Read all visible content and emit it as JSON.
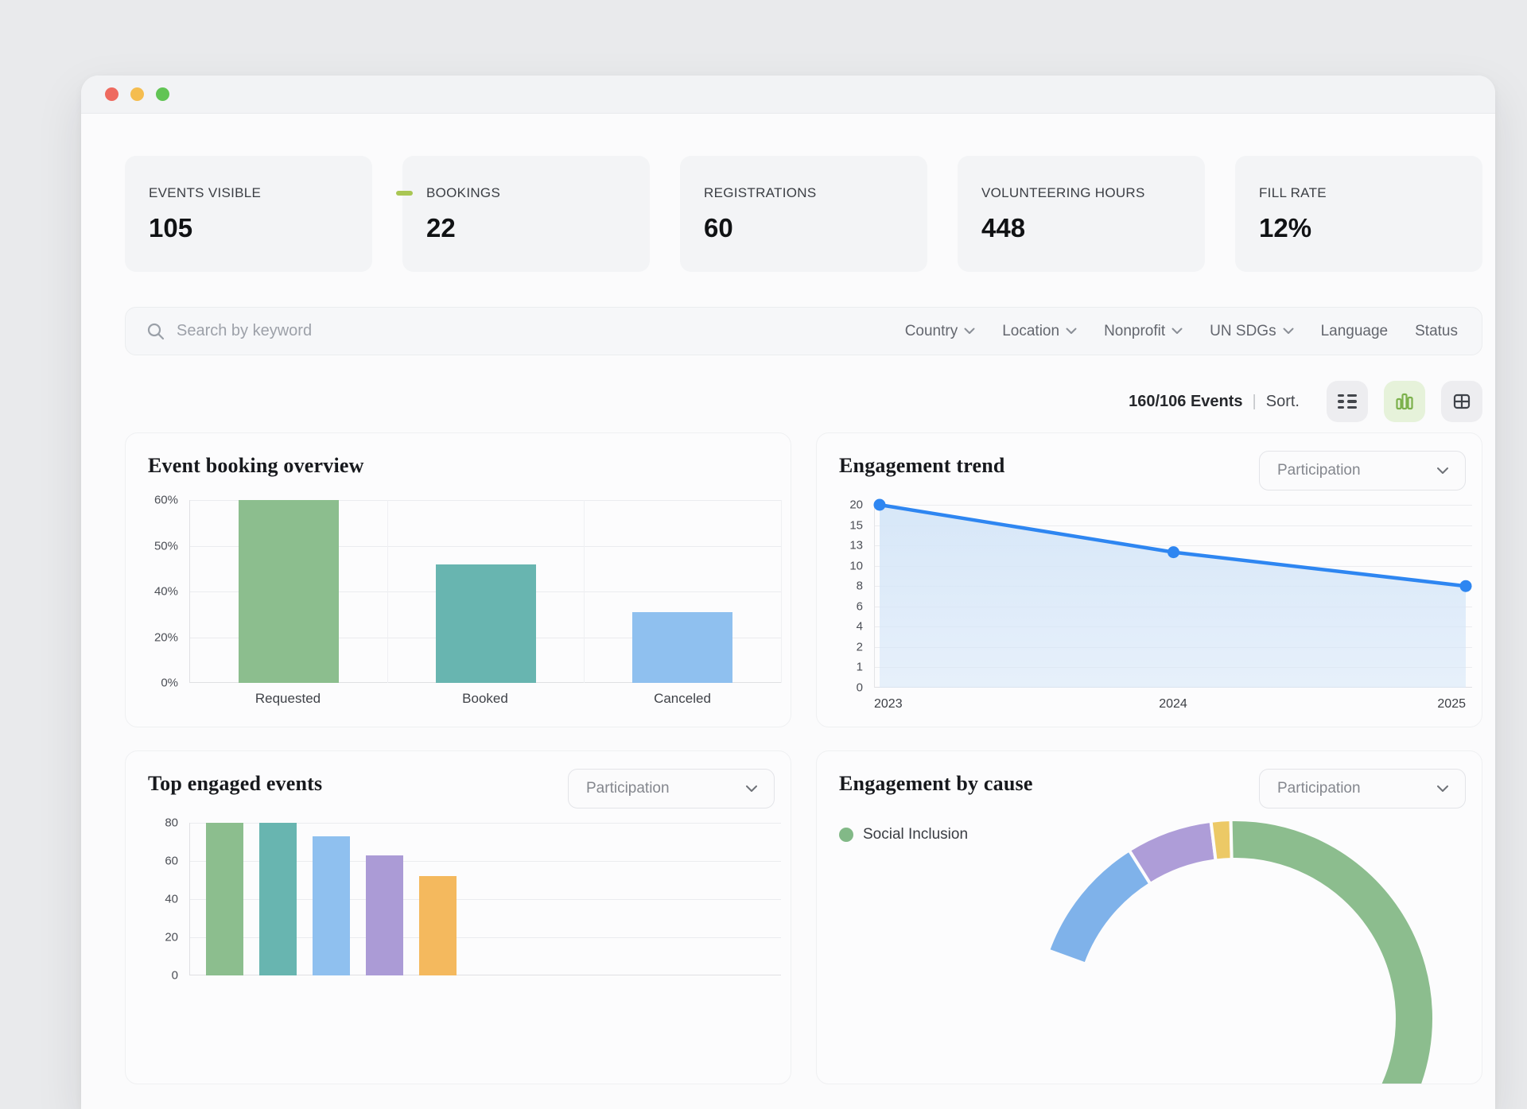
{
  "window": {
    "traffic_lights": {
      "close": "#ee6a5f",
      "minimize": "#f5bd4f",
      "zoom": "#61c454"
    }
  },
  "stats_cards": [
    {
      "label": "EVENTS VISIBLE",
      "value": "105"
    },
    {
      "label": "BOOKINGS",
      "value": "22"
    },
    {
      "label": "REGISTRATIONS",
      "value": "60"
    },
    {
      "label": "VOLUNTEERING HOURS",
      "value": "448"
    },
    {
      "label": "FILL RATE",
      "value": "12%"
    }
  ],
  "green_dash_color": "#a9c654",
  "search": {
    "placeholder": "Search by keyword",
    "filters": [
      {
        "label": "Country",
        "has_chevron": true
      },
      {
        "label": "Location",
        "has_chevron": true
      },
      {
        "label": "Nonprofit",
        "has_chevron": true
      },
      {
        "label": "UN SDGs",
        "has_chevron": true
      },
      {
        "label": "Language",
        "has_chevron": false
      },
      {
        "label": "Status",
        "has_chevron": false
      }
    ]
  },
  "toolbar": {
    "events_count": "160/106 Events",
    "separator": "|",
    "sort_label": "Sort.",
    "active_accent": "#7cb14c",
    "view_buttons": [
      {
        "name": "list-view",
        "active": false
      },
      {
        "name": "chart-view",
        "active": true
      },
      {
        "name": "grid-view",
        "active": false
      }
    ]
  },
  "chart_data": [
    {
      "id": "event-booking-overview",
      "type": "bar",
      "title": "Event booking overview",
      "categories": [
        "Requested",
        "Booked",
        "Canceled"
      ],
      "values": [
        60,
        46,
        31
      ],
      "unit": "%",
      "y_ticks_ascending": [
        0,
        20,
        40,
        50,
        60
      ],
      "y_tick_labels": [
        "0%",
        "20%",
        "40%",
        "50%",
        "60%"
      ],
      "bar_colors": [
        "#8cbe8e",
        "#68b5b0",
        "#8fc0ef"
      ],
      "grid": true
    },
    {
      "id": "engagement-trend",
      "type": "line",
      "title": "Engagement trend",
      "dropdown_value": "Participation",
      "x": [
        "2023",
        "2024",
        "2025"
      ],
      "values": [
        20,
        12,
        8
      ],
      "y_ticks_ascending": [
        0,
        1,
        2,
        4,
        6,
        8,
        10,
        13,
        15,
        20
      ],
      "line_color": "#2e86f1",
      "area_color": "#d5e6f8",
      "grid": true
    },
    {
      "id": "top-engaged-events",
      "type": "bar",
      "title": "Top engaged events",
      "dropdown_value": "Participation",
      "values": [
        80,
        80,
        73,
        63,
        52
      ],
      "y_ticks_ascending": [
        0,
        20,
        40,
        60,
        80
      ],
      "y_tick_labels": [
        "0",
        "20",
        "40",
        "60",
        "80"
      ],
      "bar_colors": [
        "#8cbe8e",
        "#68b5b0",
        "#8fc0ef",
        "#ab9bd6",
        "#f4b95e"
      ],
      "grid": true
    },
    {
      "id": "engagement-by-cause",
      "type": "pie",
      "title": "Engagement by cause",
      "dropdown_value": "Participation",
      "legend": [
        {
          "label": "Social Inclusion",
          "color": "#82b987"
        }
      ],
      "start_angle_deg": -70,
      "slices_clockwise": [
        {
          "label": "",
          "color": "#7fb2ea",
          "percent": 10.5
        },
        {
          "label": "",
          "color": "#ae9dd8",
          "percent": 7
        },
        {
          "label": "",
          "color": "#ecc966",
          "percent": 1.6
        },
        {
          "label": "Social Inclusion",
          "color": "#8cbd8e",
          "percent": 33
        }
      ]
    }
  ]
}
